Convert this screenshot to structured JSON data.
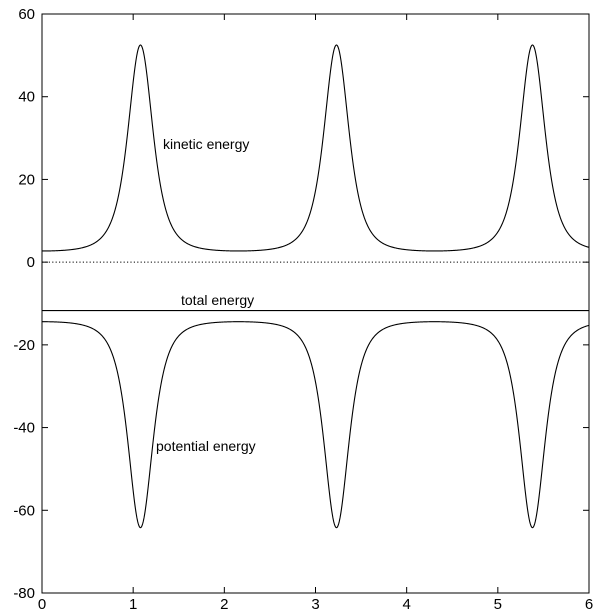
{
  "chart_data": {
    "type": "line",
    "xlim": [
      0,
      6
    ],
    "ylim": [
      -80,
      60
    ],
    "x_ticks": [
      "0",
      "1",
      "2",
      "3",
      "4",
      "5",
      "6"
    ],
    "y_ticks": [
      "60",
      "40",
      "20",
      "0",
      "-20",
      "-40",
      "-60",
      "-80"
    ],
    "zero_line": {
      "y": 0,
      "style": "dotted"
    },
    "series": [
      {
        "label": "kinetic energy",
        "period": 2.15,
        "peak_x": [
          1.08,
          3.23,
          5.38
        ],
        "min_value": 2.7,
        "max_value": 52.5,
        "x": [
          0,
          0.2,
          0.4,
          0.6,
          0.8,
          0.9,
          1.0,
          1.05,
          1.08,
          1.11,
          1.16,
          1.26,
          1.36,
          1.56,
          1.76,
          1.96,
          2.15,
          2.35,
          2.55,
          2.75,
          2.95,
          3.05,
          3.15,
          3.2,
          3.23,
          3.26,
          3.31,
          3.41,
          3.51,
          3.71,
          3.91,
          4.11,
          4.3,
          4.5,
          4.7,
          4.9,
          5.1,
          5.2,
          5.3,
          5.35,
          5.38,
          5.41,
          5.46,
          5.56,
          5.66,
          5.86,
          6.0
        ],
        "values": [
          2.7,
          3.2,
          5.0,
          8.8,
          19.0,
          29.5,
          44.0,
          50.5,
          52.5,
          50.5,
          42.0,
          26.5,
          17.0,
          8.8,
          5.0,
          3.2,
          2.7,
          3.2,
          5.0,
          8.8,
          19.0,
          29.5,
          44.0,
          50.5,
          52.5,
          50.5,
          42.0,
          26.5,
          17.0,
          8.8,
          5.0,
          3.2,
          2.7,
          3.2,
          5.0,
          8.8,
          19.0,
          29.5,
          44.0,
          50.5,
          52.5,
          50.5,
          42.0,
          26.5,
          17.0,
          8.8,
          5.6
        ]
      },
      {
        "label": "total energy",
        "constant": -11.7
      },
      {
        "label": "potential energy",
        "period": 2.15,
        "trough_x": [
          1.08,
          3.23,
          5.38
        ],
        "max_value": -14.4,
        "min_value": -64.2,
        "x": [
          0,
          0.2,
          0.4,
          0.6,
          0.8,
          0.9,
          1.0,
          1.05,
          1.08,
          1.11,
          1.16,
          1.26,
          1.36,
          1.56,
          1.76,
          1.96,
          2.15,
          2.35,
          2.55,
          2.75,
          2.95,
          3.05,
          3.15,
          3.2,
          3.23,
          3.26,
          3.31,
          3.41,
          3.51,
          3.71,
          3.91,
          4.11,
          4.3,
          4.5,
          4.7,
          4.9,
          5.1,
          5.2,
          5.3,
          5.35,
          5.38,
          5.41,
          5.46,
          5.56,
          5.66,
          5.86,
          6.0
        ],
        "values": [
          -14.4,
          -14.9,
          -16.7,
          -20.5,
          -30.7,
          -41.2,
          -55.7,
          -62.2,
          -64.2,
          -62.2,
          -53.7,
          -38.2,
          -28.7,
          -20.5,
          -16.7,
          -14.9,
          -14.4,
          -14.9,
          -16.7,
          -20.5,
          -30.7,
          -41.2,
          -55.7,
          -62.2,
          -64.2,
          -62.2,
          -53.7,
          -38.2,
          -28.7,
          -20.5,
          -16.7,
          -14.9,
          -14.4,
          -14.9,
          -16.7,
          -20.5,
          -30.7,
          -41.2,
          -55.7,
          -62.2,
          -64.2,
          -62.2,
          -53.7,
          -38.2,
          -28.7,
          -20.5,
          -17.3
        ]
      }
    ]
  }
}
